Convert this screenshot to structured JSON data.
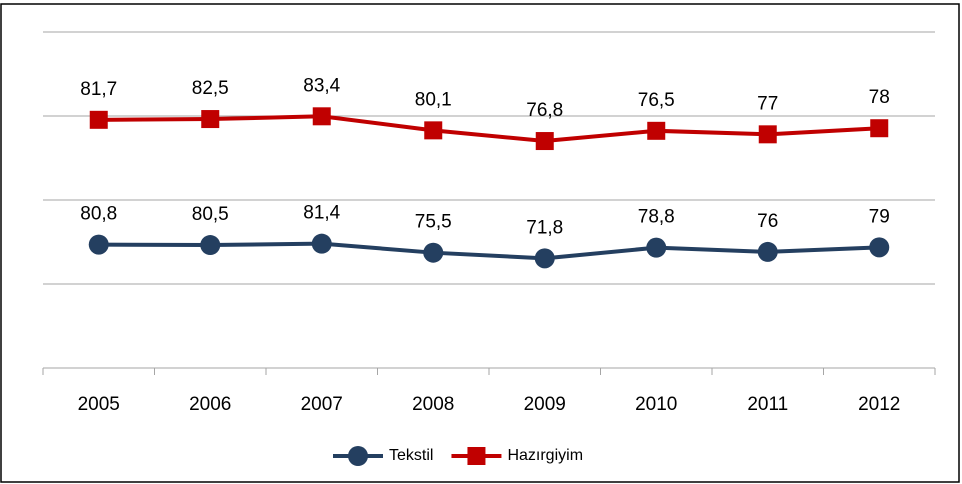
{
  "chart_data": {
    "type": "line",
    "stacked": true,
    "categories": [
      "2005",
      "2006",
      "2007",
      "2008",
      "2009",
      "2010",
      "2011",
      "2012"
    ],
    "series": [
      {
        "name": "Tekstil",
        "color": "#243f60",
        "marker": "circle",
        "values": [
          80.8,
          80.5,
          81.4,
          75.5,
          71.8,
          78.8,
          76,
          79
        ],
        "value_labels": [
          "80,8",
          "80,5",
          "81,4",
          "75,5",
          "71,8",
          "78,8",
          "76",
          "79"
        ]
      },
      {
        "name": "Hazırgiyim",
        "color": "#c00000",
        "marker": "square",
        "values": [
          81.7,
          82.5,
          83.4,
          80.1,
          76.8,
          76.5,
          77,
          78
        ],
        "value_labels": [
          "81,7",
          "82,5",
          "83,4",
          "80,1",
          "76,8",
          "76,5",
          "77",
          "78"
        ]
      }
    ],
    "ylim": [
      0,
      220
    ],
    "yticks": [
      55,
      110,
      165,
      220
    ],
    "grid": true,
    "legend": "bottom"
  }
}
